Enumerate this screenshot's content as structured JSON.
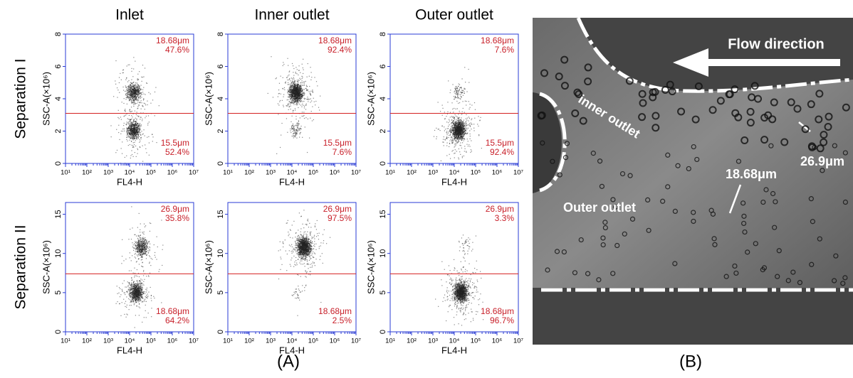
{
  "columns": [
    "Inlet",
    "Inner outlet",
    "Outer outlet"
  ],
  "rows": [
    {
      "label": "Separation I",
      "ylim": [
        0,
        8
      ],
      "yticks": [
        0,
        2,
        4,
        6,
        8
      ],
      "gate": 3.1,
      "panels": [
        {
          "upper_size": "18.68μm",
          "upper_pct": "47.6%",
          "lower_size": "15.5μm",
          "lower_pct": "52.4%"
        },
        {
          "upper_size": "18.68μm",
          "upper_pct": "92.4%",
          "lower_size": "15.5μm",
          "lower_pct": "7.6%"
        },
        {
          "upper_size": "18.68μm",
          "upper_pct": "7.6%",
          "lower_size": "15.5μm",
          "lower_pct": "92.4%"
        }
      ]
    },
    {
      "label": "Separation II",
      "ylim": [
        0,
        16.5
      ],
      "yticks": [
        0,
        5,
        10,
        15
      ],
      "gate": 7.4,
      "panels": [
        {
          "upper_size": "26.9μm",
          "upper_pct": "35.8%",
          "lower_size": "18.68μm",
          "lower_pct": "64.2%"
        },
        {
          "upper_size": "26.9μm",
          "upper_pct": "97.5%",
          "lower_size": "18.68μm",
          "lower_pct": "2.5%"
        },
        {
          "upper_size": "26.9μm",
          "upper_pct": "3.3%",
          "lower_size": "18.68μm",
          "lower_pct": "96.7%"
        }
      ]
    }
  ],
  "y_label": "SSC-A(×10⁶)",
  "x_label": "FL4-H",
  "xlim": [
    1,
    7
  ],
  "xticks": [
    {
      "value": 10,
      "label": "10¹"
    },
    {
      "value": 100,
      "label": "10²"
    },
    {
      "value": 1000,
      "label": "10³"
    },
    {
      "value": 10000,
      "label": "10⁴"
    },
    {
      "value": 100000,
      "label": "10⁵"
    },
    {
      "value": 1000000,
      "label": "10⁶"
    },
    {
      "value": 10000000,
      "label": "10⁷"
    }
  ],
  "label_A": "(A)",
  "label_B": "(B)",
  "micrograph": {
    "flow": "Flow direction",
    "inner": "inner outlet",
    "outer": "Outer outlet",
    "large": "26.9μm",
    "small": "18.68μm"
  }
}
